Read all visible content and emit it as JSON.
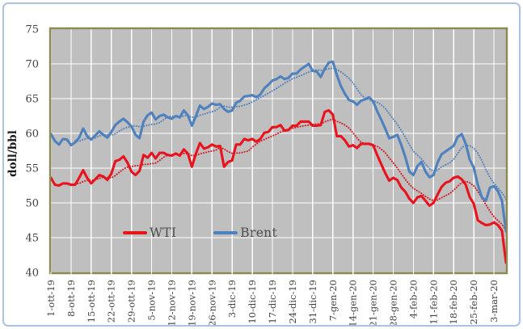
{
  "chart_data": {
    "type": "line",
    "title": "",
    "xlabel": "",
    "ylabel": "doll/bbl",
    "ylim": [
      40,
      75
    ],
    "ytick_step": 5,
    "grid": true,
    "legend_position": "inside-bottom-left",
    "x_tick_labels": [
      "1-ott-19",
      "8-ott-19",
      "15-ott-19",
      "22-ott-19",
      "29-ott-19",
      "5-nov-19",
      "12-nov-19",
      "19-nov-19",
      "26-nov-19",
      "3-dic-19",
      "10-dic-19",
      "17-dic-19",
      "24-dic-19",
      "31-dic-19",
      "7-gen-20",
      "14-gen-20",
      "21-gen-20",
      "28-gen-20",
      "4-feb-20",
      "11-feb-20",
      "18-feb-20",
      "25-feb-20",
      "3-mar-20"
    ],
    "x_points_per_tick": 5,
    "series": [
      {
        "name": "WTI",
        "color": "#e8131d",
        "style": "solid",
        "values": [
          53.6,
          52.6,
          52.5,
          52.8,
          52.8,
          52.6,
          52.6,
          53.6,
          54.7,
          53.6,
          52.8,
          53.4,
          54.0,
          53.8,
          53.3,
          54.2,
          56.0,
          56.2,
          56.7,
          55.8,
          54.5,
          54.0,
          54.6,
          56.9,
          56.5,
          57.2,
          56.4,
          57.2,
          57.2,
          56.9,
          56.8,
          57.1,
          56.8,
          57.7,
          57.1,
          55.2,
          57.1,
          58.6,
          57.8,
          58.0,
          58.4,
          58.1,
          58.2,
          55.2,
          55.9,
          56.1,
          58.4,
          58.4,
          59.2,
          59.0,
          59.2,
          58.8,
          59.2,
          60.1,
          60.2,
          60.9,
          60.9,
          61.2,
          60.4,
          60.5,
          61.1,
          61.1,
          61.7,
          61.7,
          61.7,
          61.1,
          61.1,
          61.2,
          63.1,
          63.3,
          62.7,
          59.6,
          59.6,
          59.0,
          58.1,
          58.3,
          57.9,
          58.5,
          58.5,
          58.5,
          58.3,
          56.9,
          55.6,
          54.3,
          53.2,
          53.6,
          53.3,
          52.2,
          51.6,
          50.6,
          50.0,
          50.8,
          51.0,
          50.3,
          49.6,
          50.0,
          51.2,
          52.3,
          52.9,
          53.1,
          53.6,
          53.8,
          53.4,
          52.6,
          50.8,
          49.9,
          47.5,
          47.1,
          46.8,
          46.9,
          47.2,
          46.8,
          46.0,
          41.4
        ]
      },
      {
        "name": "Brent",
        "color": "#4f81bd",
        "style": "solid",
        "values": [
          59.9,
          58.9,
          58.4,
          59.2,
          59.1,
          58.3,
          58.7,
          59.4,
          60.7,
          59.6,
          59.1,
          59.7,
          60.3,
          59.8,
          59.4,
          60.2,
          61.2,
          61.7,
          62.1,
          61.6,
          61.0,
          59.8,
          59.3,
          61.7,
          62.6,
          63.0,
          62.0,
          62.5,
          62.7,
          62.3,
          62.1,
          62.5,
          62.3,
          63.3,
          62.6,
          61.1,
          62.5,
          64.0,
          63.5,
          63.8,
          64.3,
          64.1,
          64.2,
          63.5,
          63.1,
          63.3,
          64.4,
          64.7,
          65.3,
          65.4,
          65.5,
          65.2,
          65.6,
          66.5,
          67.0,
          67.6,
          67.8,
          68.2,
          67.8,
          68.0,
          68.6,
          68.6,
          69.2,
          69.6,
          70.0,
          69.0,
          68.9,
          68.1,
          69.3,
          70.2,
          70.3,
          68.4,
          66.8,
          65.7,
          64.8,
          64.6,
          64.1,
          64.7,
          64.9,
          65.2,
          64.6,
          63.2,
          62.0,
          60.7,
          59.3,
          59.5,
          59.8,
          58.3,
          56.6,
          54.5,
          54.0,
          55.3,
          55.9,
          54.5,
          53.7,
          54.0,
          55.8,
          57.0,
          57.4,
          57.8,
          58.2,
          59.5,
          59.9,
          58.5,
          56.2,
          55.1,
          52.6,
          50.8,
          50.3,
          52.2,
          52.4,
          51.7,
          50.3,
          45.9
        ]
      }
    ],
    "trendlines": [
      {
        "series": "WTI",
        "type": "moving_average",
        "window": 7,
        "style": "dotted",
        "color": "#d6161f"
      },
      {
        "series": "Brent",
        "type": "moving_average",
        "window": 7,
        "style": "dotted",
        "color": "#4f81bd"
      }
    ],
    "colors": {
      "plot_background": "#bfbfbf",
      "gridline": "#ffffff",
      "plot_border": "#8c8a52",
      "axis_text": "#3f3f3f",
      "y_axis_title_text": "#1a1a1a",
      "legend_text": "#4d4d4d",
      "frame_border": "#aac4e0"
    }
  }
}
